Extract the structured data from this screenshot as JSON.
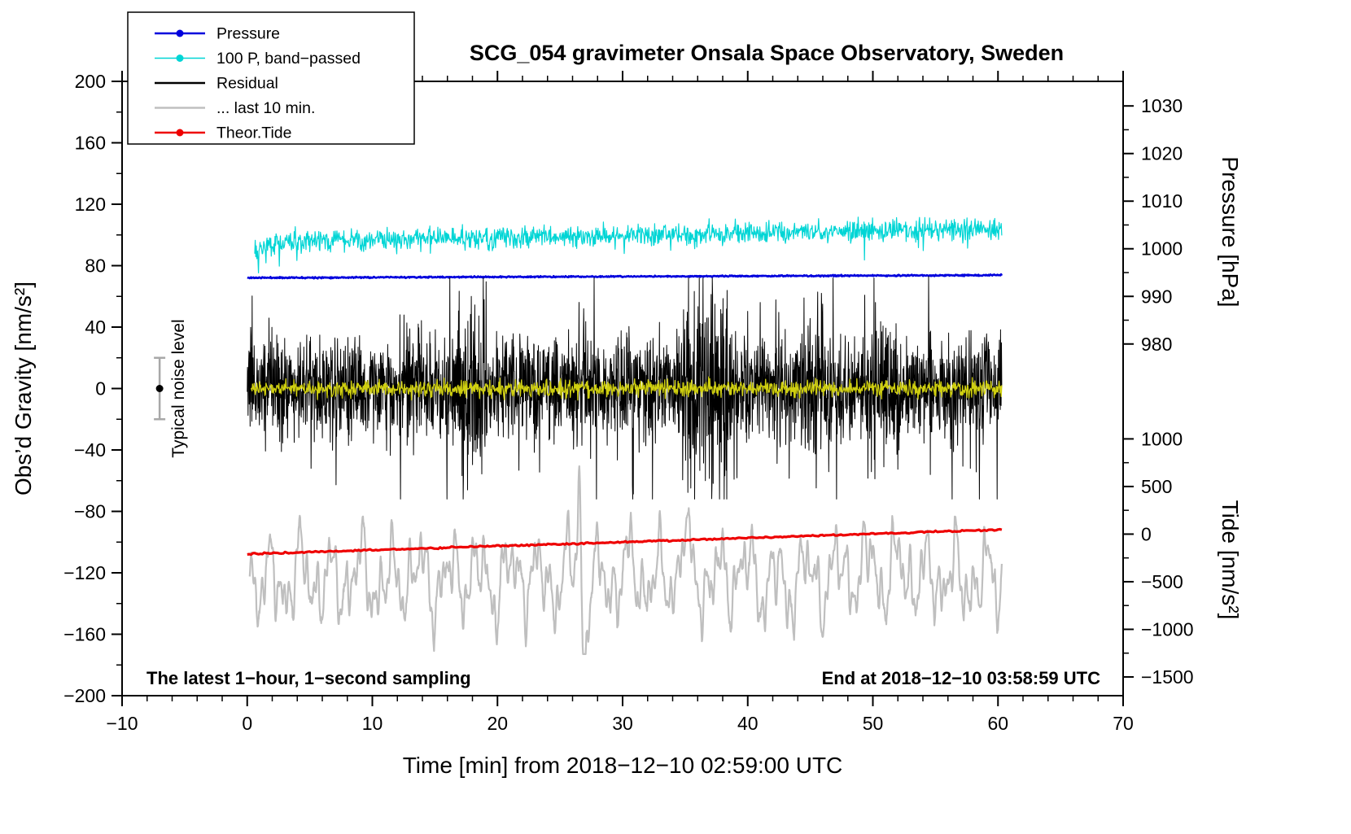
{
  "chart_data": {
    "type": "line",
    "title": "SCG_054 gravimeter Onsala Space Observatory, Sweden",
    "xlabel": "Time [min] from 2018−12−10 02:59:00 UTC",
    "xlim": [
      -10,
      70
    ],
    "x_major_ticks": [
      -10,
      0,
      10,
      20,
      30,
      40,
      50,
      60,
      70
    ],
    "x_minor_step": 2,
    "grid": false,
    "legend_position": "top-left",
    "axes": {
      "gravity": {
        "label": "Obs’d Gravity [nm/s²]",
        "min": -200,
        "max": 200,
        "major_ticks": [
          -200,
          -160,
          -120,
          -80,
          -40,
          0,
          40,
          80,
          120,
          160,
          200
        ],
        "minor_step": 20
      },
      "pressure": {
        "label": "Pressure [hPa]",
        "major_ticks": [
          1030,
          1020,
          1010,
          1000,
          990,
          980
        ],
        "minor_step": 5,
        "ref_value": 1000,
        "ref_gravity": 91,
        "gravity_per_unit": 3.1
      },
      "tide": {
        "label": "Tide [nm/s²]",
        "major_ticks": [
          1000,
          500,
          0,
          -500,
          -1000,
          -1500
        ],
        "minor_step": 250,
        "ref_value": 0,
        "ref_gravity": -94.8,
        "gravity_per_unit": 0.062
      }
    },
    "legend": [
      {
        "label": "Pressure",
        "color": "#0000dd",
        "marker": true,
        "line_width": 2.6
      },
      {
        "label": "100 P, band−passed",
        "color": "#00d5d5",
        "marker": true,
        "line_width": 1.4
      },
      {
        "label": "Residual",
        "color": "#000000",
        "marker": false,
        "line_width": 2.4
      },
      {
        "label": "... last 10 min.",
        "color": "#bfbfbf",
        "marker": false,
        "line_width": 2.4
      },
      {
        "label": "Theor.Tide",
        "color": "#ee0000",
        "marker": true,
        "line_width": 2.6
      }
    ],
    "annotations": {
      "noise_marker_label": "Typical noise level",
      "noise_marker": {
        "x": -7,
        "gravity_value": 0,
        "half_range": 20
      },
      "bottom_left": "The latest 1−hour, 1−second sampling",
      "bottom_right": "End at 2018−12−10 03:58:59 UTC"
    },
    "series": [
      {
        "name": "pressure",
        "label": "Pressure",
        "color": "#0000dd",
        "axis": "pressure",
        "width": 2.6,
        "x_range": [
          0,
          60.3
        ],
        "n": 1200,
        "seed": 11,
        "baseline": [
          [
            0,
            993.9
          ],
          [
            60.3,
            994.45
          ]
        ],
        "noise_sigma": 0.07
      },
      {
        "name": "pressure_bandpassed",
        "label": "100 P, band−passed",
        "color": "#00d5d5",
        "axis": "gravity",
        "width": 1.2,
        "x_range": [
          0.6,
          60.3
        ],
        "n": 1400,
        "seed": 22,
        "baseline": [
          [
            0.6,
            92
          ],
          [
            3,
            95
          ],
          [
            10,
            97
          ],
          [
            20,
            98.5
          ],
          [
            30,
            100
          ],
          [
            40,
            101
          ],
          [
            50,
            103
          ],
          [
            60.3,
            104.5
          ]
        ],
        "noise_sigma": 3.4,
        "spike_prob": 0.012,
        "spike_scale": 2.6
      },
      {
        "name": "residual",
        "label": "Residual",
        "color": "#000000",
        "axis": "gravity",
        "width": 1,
        "x_range": [
          0,
          60.3
        ],
        "n": 2600,
        "seed": 33,
        "baseline": [
          [
            0,
            0
          ],
          [
            60.3,
            0
          ]
        ],
        "noise_sigma": 17,
        "bursts": [
          {
            "x0": 16.8,
            "x1": 19.2,
            "extra": 13
          },
          {
            "x0": 34.8,
            "x1": 38.6,
            "extra": 15
          },
          {
            "x0": 44.2,
            "x1": 46.6,
            "extra": 9
          },
          {
            "x0": 49.6,
            "x1": 52.2,
            "extra": 7
          }
        ],
        "tail_prob": 0.02,
        "tail_scale": 1.9,
        "clamp": 72,
        "spikes": [
          {
            "x": 5.1,
            "v": -52
          },
          {
            "x": 12.2,
            "v": 48
          },
          {
            "x": 17.6,
            "v": -66
          },
          {
            "x": 17.9,
            "v": 60
          },
          {
            "x": 26.9,
            "v": 52
          },
          {
            "x": 36.6,
            "v": -60
          },
          {
            "x": 41.0,
            "v": 56
          },
          {
            "x": 45.9,
            "v": 62
          },
          {
            "x": 50.2,
            "v": 56
          },
          {
            "x": 54.45,
            "v": 73
          },
          {
            "x": 54.6,
            "v": -56
          },
          {
            "x": 57.8,
            "v": -52
          }
        ]
      },
      {
        "name": "residual_filtered",
        "label": "",
        "color": "#cfcf10",
        "axis": "gravity",
        "width": 1.3,
        "x_range": [
          0.3,
          60.3
        ],
        "n": 1400,
        "seed": 44,
        "baseline": [
          [
            0.3,
            0
          ],
          [
            60.3,
            0
          ]
        ],
        "noise_sigma": 2.6
      },
      {
        "name": "residual_last10",
        "label": "... last 10 min.",
        "color": "#bfbfbf",
        "axis": "tide",
        "width": 2.2,
        "x_range": [
          0.2,
          60.3
        ],
        "n": 2000,
        "seed": 55,
        "baseline": [
          [
            0.2,
            -480
          ],
          [
            60.3,
            -430
          ]
        ],
        "oscillation": {
          "components": [
            [
              250,
              0.42
            ],
            [
              190,
              0.8
            ],
            [
              150,
              1.35
            ],
            [
              110,
              2.2
            ],
            [
              80,
              3.4
            ],
            [
              60,
              0.23
            ]
          ]
        },
        "noise_sigma": 18,
        "spikes_gauss": [
          {
            "x": 26.55,
            "amp": 1050,
            "w": 0.18
          },
          {
            "x": 26.95,
            "amp": -1050,
            "w": 0.22
          },
          {
            "x": 34.9,
            "amp": 420,
            "w": 0.28
          },
          {
            "x": 43.1,
            "amp": -380,
            "w": 0.3
          },
          {
            "x": 49.9,
            "amp": 380,
            "w": 0.25
          },
          {
            "x": 57.0,
            "amp": -300,
            "w": 0.3
          }
        ],
        "clamp_low": -1260
      },
      {
        "name": "theor_tide",
        "label": "Theor.Tide",
        "color": "#ee0000",
        "axis": "tide",
        "width": 3.2,
        "x_range": [
          0,
          60.3
        ],
        "n": 400,
        "seed": 66,
        "baseline": [
          [
            0,
            -208
          ],
          [
            30,
            -84
          ],
          [
            60.3,
            48
          ]
        ],
        "noise_sigma": 4
      }
    ]
  }
}
